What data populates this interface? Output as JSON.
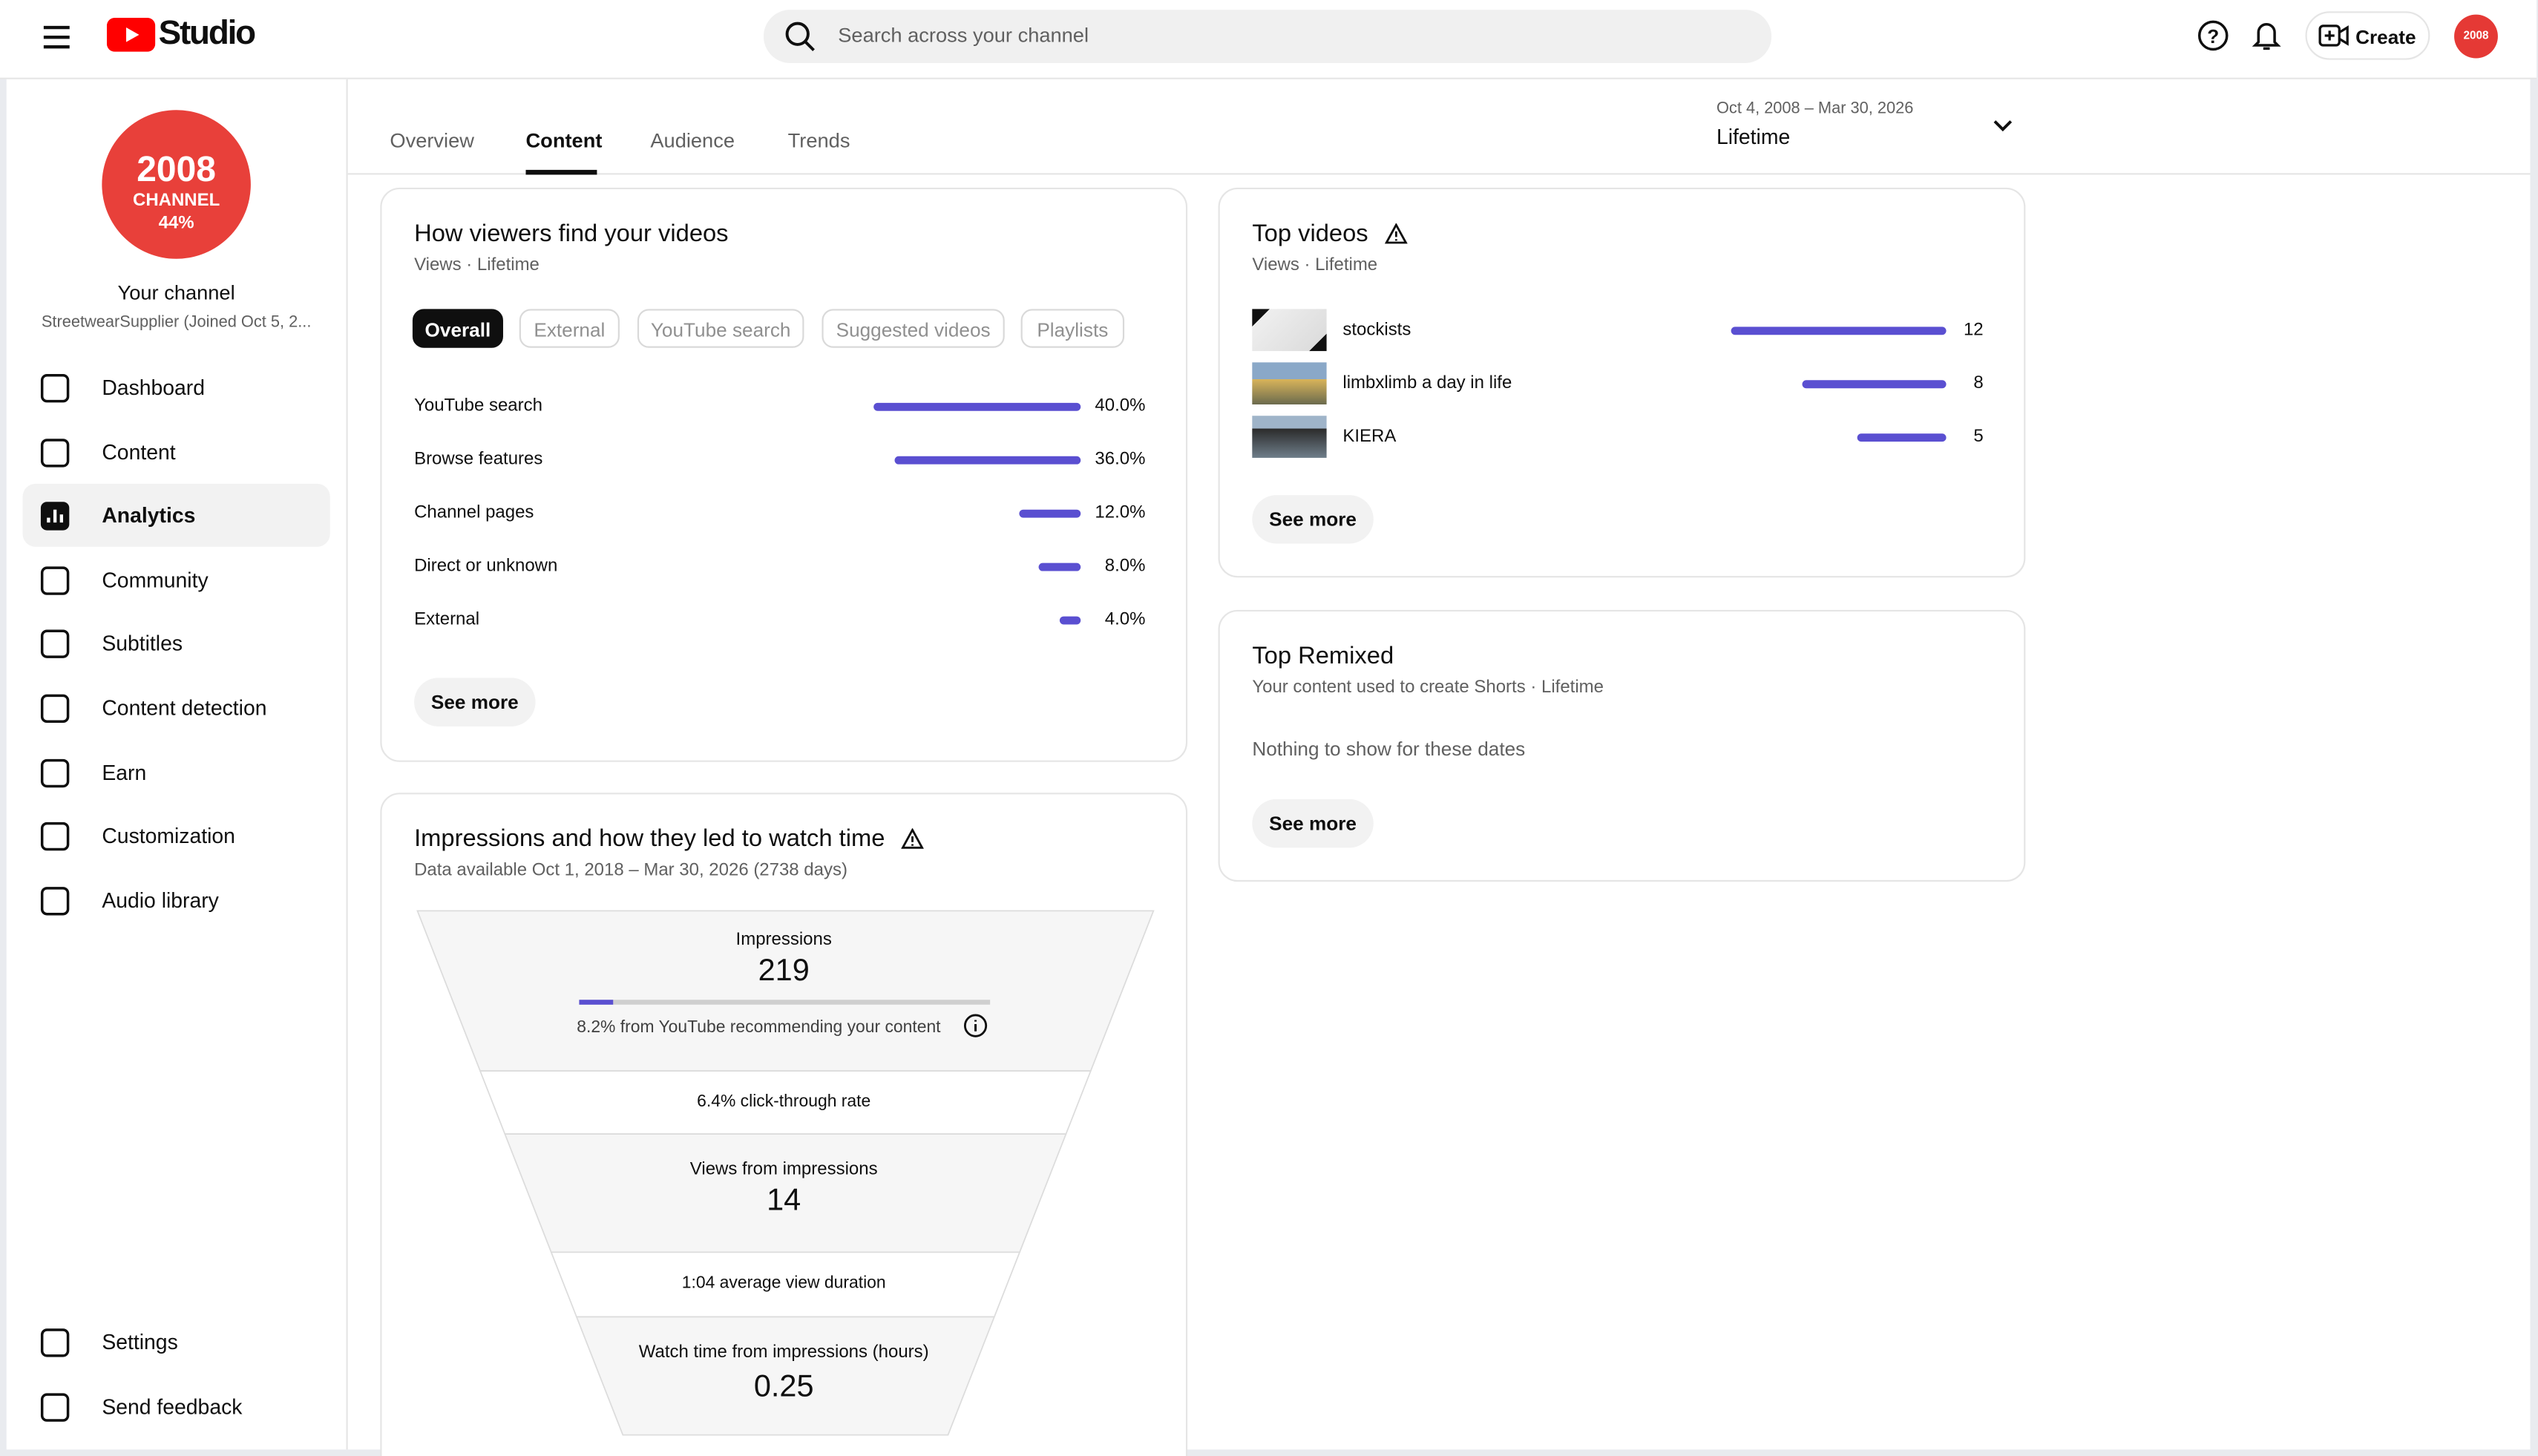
{
  "header": {
    "logo": "Studio",
    "search_placeholder": "Search across your channel",
    "create": "Create",
    "avatar_text": "2008"
  },
  "sidebar": {
    "avatar_lines": [
      "2008",
      "CHANNEL",
      "44%"
    ],
    "channel_title": "Your channel",
    "channel_subtitle": "StreetwearSupplier (Joined Oct 5, 2...",
    "nav": [
      {
        "label": "Dashboard"
      },
      {
        "label": "Content"
      },
      {
        "label": "Analytics",
        "active": true
      },
      {
        "label": "Community"
      },
      {
        "label": "Subtitles"
      },
      {
        "label": "Content detection"
      },
      {
        "label": "Earn"
      },
      {
        "label": "Customization"
      },
      {
        "label": "Audio library"
      }
    ],
    "footer_nav": [
      "Settings",
      "Send feedback"
    ]
  },
  "tabs": [
    {
      "label": "Overview"
    },
    {
      "label": "Content",
      "selected": true
    },
    {
      "label": "Audience"
    },
    {
      "label": "Trends"
    }
  ],
  "date_range": {
    "dates": "Oct 4, 2008 – Mar 30, 2026",
    "period": "Lifetime"
  },
  "traffic": {
    "title": "How viewers find your videos",
    "subtitle": "Views · Lifetime",
    "chips": [
      {
        "label": "Overall",
        "selected": true
      },
      {
        "label": "External"
      },
      {
        "label": "YouTube search"
      },
      {
        "label": "Suggested videos"
      },
      {
        "label": "Playlists"
      }
    ],
    "rows": [
      {
        "label": "YouTube search",
        "value": 40,
        "value_label": "40.0%"
      },
      {
        "label": "Browse features",
        "value": 36,
        "value_label": "36.0%"
      },
      {
        "label": "Channel pages",
        "value": 12,
        "value_label": "12.0%"
      },
      {
        "label": "Direct or unknown",
        "value": 8,
        "value_label": "8.0%"
      },
      {
        "label": "External",
        "value": 4,
        "value_label": "4.0%"
      }
    ],
    "button": "See more"
  },
  "top_videos": {
    "title": "Top videos",
    "subtitle": "Views · Lifetime",
    "rows": [
      {
        "title": "stockists",
        "views": 12
      },
      {
        "title": "limbxlimb a day in life",
        "views": 8
      },
      {
        "title": "KIERA",
        "views": 5
      }
    ],
    "button": "See more"
  },
  "top_remixed": {
    "title": "Top Remixed",
    "subtitle": "Your content used to create Shorts · Lifetime",
    "empty": "Nothing to show for these dates",
    "button": "See more"
  },
  "funnel": {
    "title": "Impressions and how they led to watch time",
    "subtitle": "Data available Oct 1, 2018 – Mar 30, 2026 (2738 days)",
    "impressions_label": "Impressions",
    "impressions": 219,
    "recommended_share": 8.2,
    "recommended_label": "8.2% from YouTube recommending your content",
    "ctr_label": "6.4% click-through rate",
    "views_label": "Views from impressions",
    "views": 14,
    "avd_label": "1:04 average view duration",
    "watch_label": "Watch time from impressions (hours)",
    "watch_time": 0.25
  }
}
